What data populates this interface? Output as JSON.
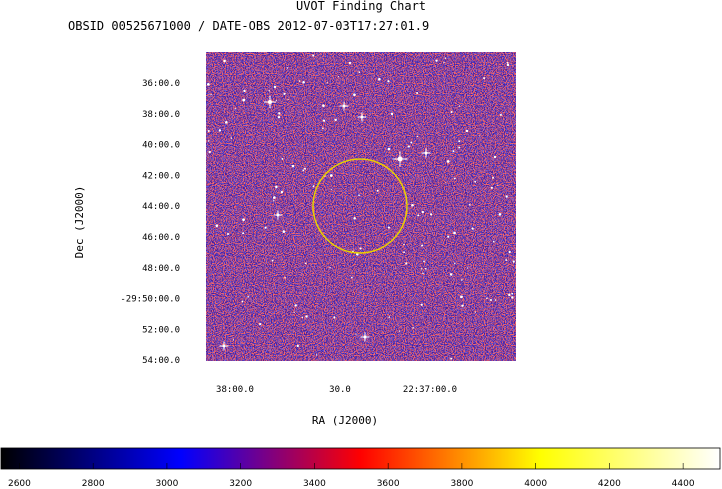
{
  "chart_data": {
    "type": "heatmap",
    "title": "UVOT Finding Chart",
    "subtitle": "OBSID 00525671000 / DATE-OBS 2012-07-03T17:27:01.9",
    "xlabel": "RA (J2000)",
    "ylabel": "Dec (J2000)",
    "x_ticks": [
      "38:00.0",
      "30.0",
      "22:37:00.0"
    ],
    "y_ticks": [
      "36:00.0",
      "38:00.0",
      "40:00.0",
      "42:00.0",
      "44:00.0",
      "46:00.0",
      "48:00.0",
      "-29:50:00.0",
      "52:00.0",
      "54:00.0"
    ],
    "colorbar": {
      "ticks": [
        2600,
        2800,
        3000,
        3200,
        3400,
        3600,
        3800,
        4000,
        4200,
        4400
      ],
      "range": [
        2550,
        4500
      ],
      "colormap": [
        "#000000",
        "#0000ff",
        "#ff0000",
        "#ffff00",
        "#ffffff"
      ]
    },
    "image_colors": {
      "background": "#4a1f9c",
      "noise_low": "#1a1acc",
      "noise_high": "#ee2020",
      "stars": "#ffffff"
    },
    "target_circle_color": "#e8d000"
  }
}
